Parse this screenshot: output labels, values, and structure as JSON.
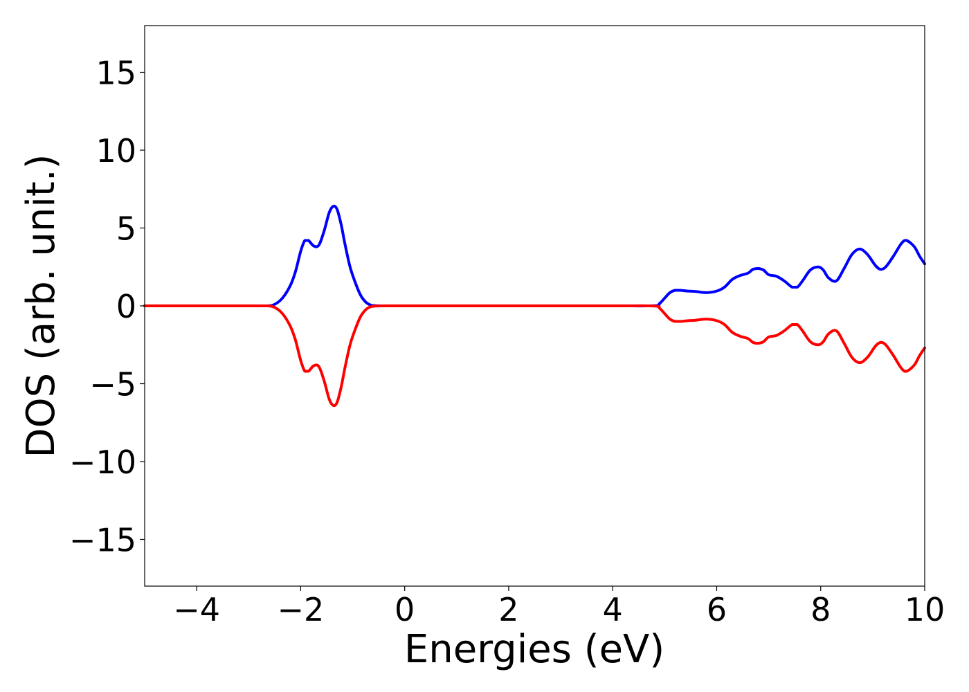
{
  "chart_data": {
    "type": "line",
    "xlabel": "Energies (eV)",
    "ylabel": "DOS (arb. unit.)",
    "xlim": [
      -5,
      10
    ],
    "ylim": [
      -18,
      18
    ],
    "xticks": [
      -4,
      -2,
      0,
      2,
      4,
      6,
      8,
      10
    ],
    "yticks": [
      -15,
      -10,
      -5,
      0,
      5,
      10,
      15
    ],
    "xtick_labels": [
      "−4",
      "−2",
      "0",
      "2",
      "4",
      "6",
      "8",
      "10"
    ],
    "ytick_labels": [
      "−15",
      "−10",
      "−5",
      "0",
      "5",
      "10",
      "15"
    ],
    "grid": false,
    "legend": "none",
    "series": [
      {
        "color": "#0000ff",
        "x": [
          -5.0,
          -3.0,
          -2.65,
          -2.5,
          -2.35,
          -2.2,
          -2.1,
          -2.0,
          -1.92,
          -1.85,
          -1.75,
          -1.65,
          -1.55,
          -1.45,
          -1.37,
          -1.3,
          -1.22,
          -1.15,
          -1.05,
          -0.95,
          -0.85,
          -0.75,
          -0.65,
          -0.55,
          -0.4,
          0.0,
          2.0,
          4.0,
          4.8,
          4.9,
          5.0,
          5.1,
          5.2,
          5.3,
          5.45,
          5.6,
          5.8,
          6.0,
          6.15,
          6.3,
          6.45,
          6.6,
          6.7,
          6.8,
          6.9,
          7.0,
          7.15,
          7.3,
          7.45,
          7.55,
          7.65,
          7.8,
          7.95,
          8.05,
          8.15,
          8.3,
          8.45,
          8.6,
          8.75,
          8.9,
          9.05,
          9.15,
          9.25,
          9.4,
          9.55,
          9.65,
          9.8,
          9.9,
          10.0
        ],
        "values": [
          0,
          0,
          0,
          0.1,
          0.5,
          1.3,
          2.2,
          3.5,
          4.2,
          4.2,
          3.85,
          3.9,
          4.8,
          6.0,
          6.4,
          6.2,
          5.2,
          4.0,
          2.5,
          1.5,
          0.7,
          0.25,
          0.05,
          0.01,
          0,
          0,
          0,
          0,
          0.01,
          0.15,
          0.5,
          0.85,
          1.0,
          1.0,
          0.95,
          0.92,
          0.85,
          0.95,
          1.2,
          1.7,
          1.95,
          2.1,
          2.35,
          2.4,
          2.3,
          2.0,
          1.9,
          1.6,
          1.2,
          1.2,
          1.6,
          2.3,
          2.5,
          2.3,
          1.8,
          1.6,
          2.4,
          3.3,
          3.65,
          3.3,
          2.6,
          2.35,
          2.5,
          3.2,
          4.0,
          4.2,
          3.8,
          3.2,
          2.7
        ]
      },
      {
        "color": "#ff0000",
        "x": [
          -5.0,
          -3.0,
          -2.65,
          -2.5,
          -2.35,
          -2.2,
          -2.1,
          -2.0,
          -1.92,
          -1.85,
          -1.75,
          -1.65,
          -1.55,
          -1.45,
          -1.37,
          -1.3,
          -1.22,
          -1.15,
          -1.05,
          -0.95,
          -0.85,
          -0.75,
          -0.65,
          -0.55,
          -0.4,
          0.0,
          2.0,
          4.0,
          4.8,
          4.9,
          5.0,
          5.1,
          5.2,
          5.3,
          5.45,
          5.6,
          5.8,
          6.0,
          6.15,
          6.3,
          6.45,
          6.6,
          6.7,
          6.8,
          6.9,
          7.0,
          7.15,
          7.3,
          7.45,
          7.55,
          7.65,
          7.8,
          7.95,
          8.05,
          8.15,
          8.3,
          8.45,
          8.6,
          8.75,
          8.9,
          9.05,
          9.15,
          9.25,
          9.4,
          9.55,
          9.65,
          9.8,
          9.9,
          10.0
        ],
        "values": [
          0,
          0,
          0,
          -0.1,
          -0.5,
          -1.3,
          -2.2,
          -3.5,
          -4.2,
          -4.2,
          -3.85,
          -3.9,
          -4.8,
          -6.0,
          -6.4,
          -6.2,
          -5.2,
          -4.0,
          -2.5,
          -1.5,
          -0.7,
          -0.25,
          -0.05,
          -0.01,
          0,
          0,
          0,
          0,
          -0.01,
          -0.15,
          -0.5,
          -0.85,
          -1.0,
          -1.0,
          -0.95,
          -0.92,
          -0.85,
          -0.95,
          -1.2,
          -1.7,
          -1.95,
          -2.1,
          -2.35,
          -2.4,
          -2.3,
          -2.0,
          -1.9,
          -1.6,
          -1.2,
          -1.2,
          -1.6,
          -2.3,
          -2.5,
          -2.3,
          -1.8,
          -1.6,
          -2.4,
          -3.3,
          -3.65,
          -3.3,
          -2.6,
          -2.35,
          -2.5,
          -3.2,
          -4.0,
          -4.2,
          -3.8,
          -3.2,
          -2.7
        ]
      }
    ]
  }
}
